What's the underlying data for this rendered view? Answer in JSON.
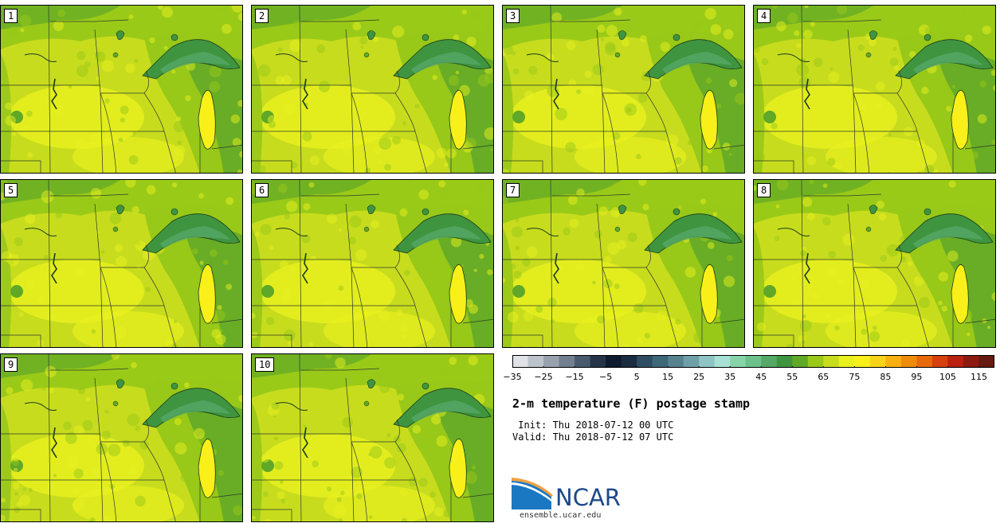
{
  "panels": [
    "1",
    "2",
    "3",
    "4",
    "5",
    "6",
    "7",
    "8",
    "9",
    "10"
  ],
  "colorbar": {
    "colors": [
      "#dfe3e8",
      "#bcc3cb",
      "#98a2ae",
      "#717f8f",
      "#4a5a6e",
      "#26344a",
      "#0e1a2e",
      "#1a2c40",
      "#2f4d62",
      "#3e6778",
      "#56818f",
      "#6fa0a8",
      "#8ec4c4",
      "#a8e0d4",
      "#86d4a8",
      "#6cc08a",
      "#56a866",
      "#3f9440",
      "#5fa828",
      "#98c818",
      "#c8dc1e",
      "#e8f01e",
      "#f8f018",
      "#f8d418",
      "#f8b010",
      "#f08c0c",
      "#e8680c",
      "#d84010",
      "#b82010",
      "#8c1a10",
      "#641a10"
    ],
    "ticks": [
      "−35",
      "−25",
      "−15",
      "−5",
      "5",
      "15",
      "25",
      "35",
      "45",
      "55",
      "65",
      "75",
      "85",
      "95",
      "105",
      "115"
    ]
  },
  "title": "2-m temperature (F) postage stamp",
  "init": " Init: Thu 2018-07-12 00 UTC",
  "valid": "Valid: Thu 2018-07-12 07 UTC",
  "logo": {
    "name": "NCAR",
    "site": "ensemble.ucar.edu"
  }
}
